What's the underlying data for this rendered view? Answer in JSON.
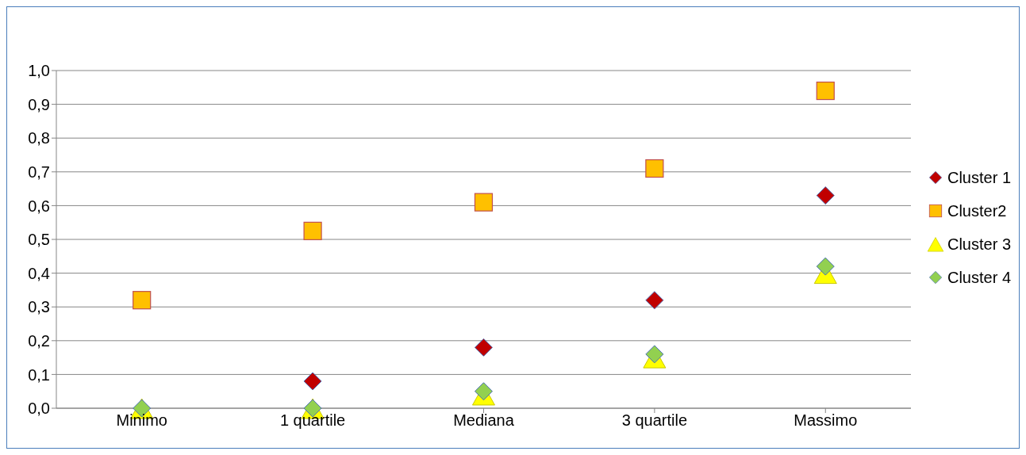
{
  "chart_data": {
    "type": "scatter",
    "categories": [
      "Minimo",
      "1 quartile",
      "Mediana",
      "3 quartile",
      "Massimo"
    ],
    "series": [
      {
        "name": "Cluster 1",
        "color": "#c00000",
        "marker": "diamond",
        "values": [
          null,
          0.08,
          0.18,
          0.32,
          0.63
        ]
      },
      {
        "name": "Cluster2",
        "color": "#ffc000",
        "marker": "square",
        "values": [
          0.32,
          0.525,
          0.61,
          0.71,
          0.94
        ]
      },
      {
        "name": "Cluster 3",
        "color": "#ffff00",
        "marker": "triangle",
        "values": [
          0,
          0,
          0.04,
          0.15,
          0.4
        ]
      },
      {
        "name": "Cluster 4",
        "color": "#92d050",
        "marker": "diamond",
        "values": [
          0,
          0,
          0.05,
          0.16,
          0.42
        ]
      }
    ],
    "ylim": [
      0,
      1
    ],
    "yticks": [
      {
        "value": 0,
        "label": "0,0"
      },
      {
        "value": 0.1,
        "label": "0,1"
      },
      {
        "value": 0.2,
        "label": "0,2"
      },
      {
        "value": 0.3,
        "label": "0,3"
      },
      {
        "value": 0.4,
        "label": "0,4"
      },
      {
        "value": 0.5,
        "label": "0,5"
      },
      {
        "value": 0.6,
        "label": "0,6"
      },
      {
        "value": 0.7,
        "label": "0,7"
      },
      {
        "value": 0.8,
        "label": "0,8"
      },
      {
        "value": 0.9,
        "label": "0,9"
      },
      {
        "value": 1,
        "label": "1,0"
      }
    ],
    "grid": "y",
    "legend": "right"
  }
}
